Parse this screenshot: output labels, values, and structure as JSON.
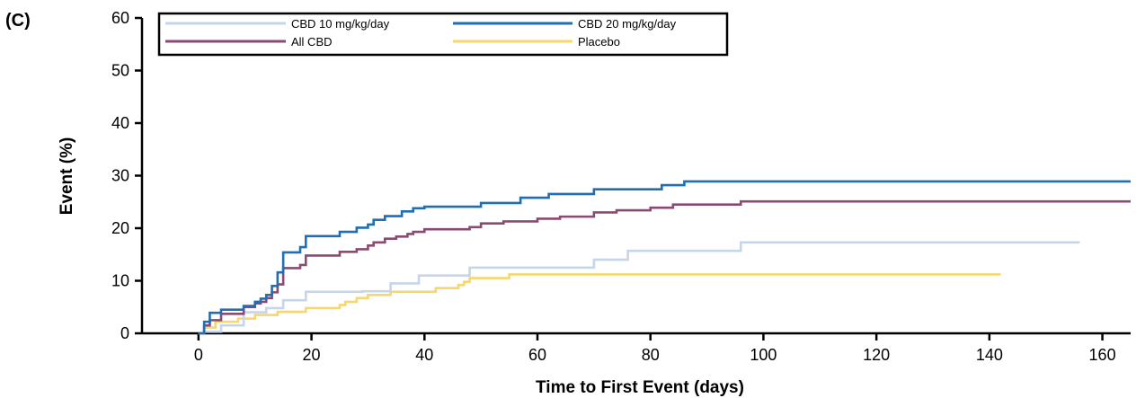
{
  "panel_label": "(C)",
  "chart_data": {
    "type": "line",
    "step": true,
    "xlabel": "Time to First Event (days)",
    "ylabel": "Event (%)",
    "xlim": [
      -10,
      165
    ],
    "ylim": [
      0,
      60
    ],
    "xticks": [
      0,
      20,
      40,
      60,
      80,
      100,
      120,
      140,
      160
    ],
    "yticks": [
      0,
      10,
      20,
      30,
      40,
      50,
      60
    ],
    "legend_position": "top-left",
    "legend": [
      "CBD 10 mg/kg/day",
      "CBD 20 mg/kg/day",
      "All CBD",
      "Placebo"
    ],
    "series": [
      {
        "name": "CBD 10 mg/kg/day",
        "color": "#c5d5ea",
        "x": [
          0,
          1,
          4,
          8,
          12,
          15,
          19,
          29,
          34,
          39,
          48,
          70,
          76,
          96,
          156
        ],
        "y": [
          0,
          0.3,
          1.5,
          4,
          4.8,
          6.3,
          7.9,
          8,
          9.5,
          11,
          12.5,
          14,
          15.7,
          17.3,
          17.3
        ]
      },
      {
        "name": "CBD 20 mg/kg/day",
        "color": "#1f6fb2",
        "x": [
          0,
          1,
          2,
          4,
          8,
          10,
          11,
          12,
          13,
          14,
          15,
          18,
          19,
          25,
          28,
          30,
          31,
          33,
          36,
          38,
          40,
          50,
          57,
          62,
          70,
          82,
          86,
          165
        ],
        "y": [
          0,
          2.2,
          3.9,
          4.5,
          5.2,
          6,
          6.6,
          7.3,
          9,
          11.6,
          15.4,
          16.4,
          18.5,
          19.3,
          20.1,
          20.7,
          21.6,
          22.3,
          23.2,
          23.8,
          24.1,
          24.8,
          25.8,
          26.5,
          27.4,
          28.2,
          28.9,
          28.9
        ]
      },
      {
        "name": "All CBD",
        "color": "#8a4a72",
        "x": [
          0,
          1,
          2,
          4,
          8,
          10,
          11,
          12,
          13,
          14,
          15,
          18,
          19,
          25,
          28,
          30,
          31,
          33,
          35,
          37,
          38,
          40,
          48,
          50,
          54,
          60,
          64,
          70,
          74,
          80,
          84,
          96,
          165
        ],
        "y": [
          0,
          1.5,
          2.5,
          3.7,
          5,
          5.7,
          6,
          6.7,
          7.8,
          9.3,
          12.4,
          13,
          14.8,
          15.5,
          16,
          16.7,
          17.3,
          18,
          18.4,
          18.9,
          19.3,
          19.8,
          20.2,
          20.9,
          21.3,
          21.8,
          22.2,
          23,
          23.4,
          23.9,
          24.5,
          25.1,
          25.1
        ]
      },
      {
        "name": "Placebo",
        "color": "#f5d76e",
        "x": [
          0,
          1,
          3,
          7,
          10,
          14,
          19,
          25,
          26,
          28,
          30,
          34,
          42,
          46,
          47,
          48,
          55,
          142
        ],
        "y": [
          0,
          1.1,
          2.2,
          2.8,
          3.5,
          4.1,
          4.8,
          5.4,
          6,
          6.7,
          7.3,
          7.9,
          8.6,
          9.2,
          9.8,
          10.5,
          11.2,
          11.2
        ]
      }
    ]
  }
}
